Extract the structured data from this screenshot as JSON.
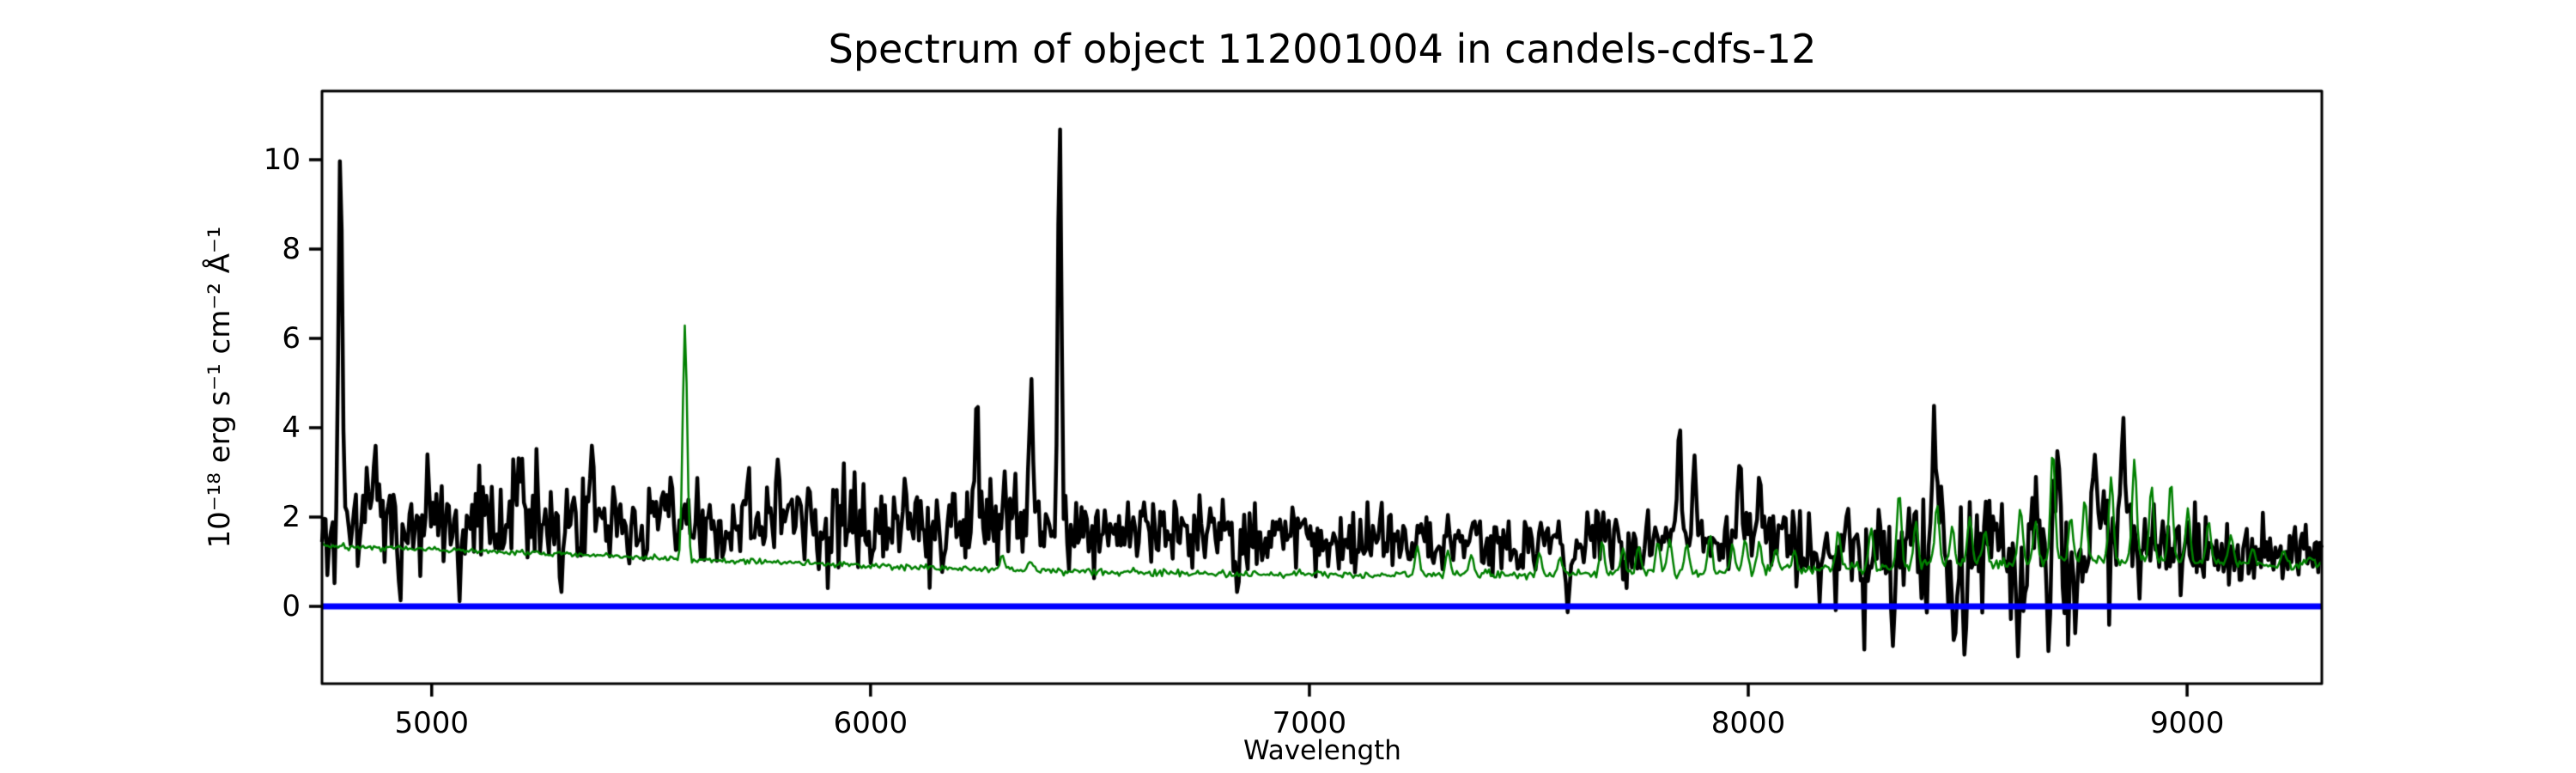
{
  "chart_data": {
    "type": "line",
    "title": "Spectrum of object 112001004 in candels-cdfs-12",
    "xlabel": "Wavelength",
    "ylabel": "10⁻¹⁸ erg s⁻¹ cm⁻² Å⁻¹",
    "xlim": [
      4750,
      9307
    ],
    "ylim": [
      -1.73,
      11.54
    ],
    "x_ticks": [
      5000,
      6000,
      7000,
      8000,
      9000
    ],
    "y_ticks": [
      0,
      2,
      4,
      6,
      8,
      10
    ],
    "grid": false,
    "legend": null,
    "background_color": "#ffffff",
    "axis_color": "#000000",
    "n_points": 1120,
    "series": [
      {
        "name": "object-flux",
        "color": "#000000",
        "linewidth": 4.5,
        "feature_width_angstrom": 4,
        "continuum_keypoints": [
          [
            4750,
            1.85
          ],
          [
            5000,
            1.95
          ],
          [
            5300,
            2.0
          ],
          [
            5600,
            1.9
          ],
          [
            5900,
            1.8
          ],
          [
            6200,
            1.85
          ],
          [
            6500,
            1.8
          ],
          [
            6800,
            1.6
          ],
          [
            7100,
            1.5
          ],
          [
            7400,
            1.45
          ],
          [
            7700,
            1.45
          ],
          [
            8000,
            1.45
          ],
          [
            8300,
            1.35
          ],
          [
            8600,
            1.4
          ],
          [
            8850,
            1.55
          ],
          [
            9000,
            1.2
          ],
          [
            9307,
            1.1
          ]
        ],
        "noise_sigma_keypoints": [
          [
            4750,
            0.55
          ],
          [
            5600,
            0.5
          ],
          [
            6200,
            0.5
          ],
          [
            6700,
            0.4
          ],
          [
            7200,
            0.33
          ],
          [
            7700,
            0.38
          ],
          [
            8100,
            0.45
          ],
          [
            8350,
            0.75
          ],
          [
            8700,
            0.85
          ],
          [
            8950,
            0.5
          ],
          [
            9100,
            0.35
          ],
          [
            9307,
            0.3
          ]
        ],
        "features": [
          [
            4792,
            10.4
          ],
          [
            4871,
            3.7
          ],
          [
            4928,
            0.05
          ],
          [
            5063,
            0.1
          ],
          [
            5205,
            3.4
          ],
          [
            5295,
            0.3
          ],
          [
            5365,
            3.6
          ],
          [
            5788,
            3.3
          ],
          [
            6243,
            4.65
          ],
          [
            6366,
            5.15
          ],
          [
            6431,
            10.9
          ],
          [
            6836,
            0.3
          ],
          [
            7589,
            -0.15
          ],
          [
            7843,
            4.15
          ],
          [
            7877,
            3.4
          ],
          [
            7981,
            3.3
          ],
          [
            8026,
            3.0
          ],
          [
            8330,
            -0.9
          ],
          [
            8423,
            4.5
          ],
          [
            8470,
            -1.0
          ],
          [
            8493,
            -1.1
          ],
          [
            8615,
            -1.13
          ],
          [
            8684,
            -1.0
          ],
          [
            8745,
            -0.6
          ],
          [
            8790,
            3.4
          ],
          [
            8854,
            4.3
          ]
        ]
      },
      {
        "name": "noise-spectrum",
        "color": "#008000",
        "linewidth": 2.5,
        "feature_width_angstrom": 5,
        "continuum_keypoints": [
          [
            4750,
            1.35
          ],
          [
            5000,
            1.28
          ],
          [
            5300,
            1.18
          ],
          [
            5600,
            1.05
          ],
          [
            5900,
            0.95
          ],
          [
            6200,
            0.85
          ],
          [
            6500,
            0.78
          ],
          [
            6800,
            0.73
          ],
          [
            7100,
            0.7
          ],
          [
            7400,
            0.72
          ],
          [
            7700,
            0.74
          ],
          [
            8000,
            0.78
          ],
          [
            8300,
            0.88
          ],
          [
            8600,
            0.98
          ],
          [
            8900,
            1.05
          ],
          [
            9100,
            0.95
          ],
          [
            9307,
            0.92
          ]
        ],
        "noise_sigma_keypoints": [
          [
            4750,
            0.03
          ],
          [
            6000,
            0.03
          ],
          [
            7000,
            0.04
          ],
          [
            7600,
            0.05
          ],
          [
            8200,
            0.07
          ],
          [
            9307,
            0.06
          ]
        ],
        "features": [
          [
            5577,
            6.3
          ],
          [
            6300,
            1.15
          ],
          [
            6364,
            1.0
          ],
          [
            7246,
            1.35
          ],
          [
            7316,
            1.25
          ],
          [
            7369,
            1.15
          ],
          [
            7524,
            1.2
          ],
          [
            7571,
            1.1
          ],
          [
            7667,
            1.45
          ],
          [
            7715,
            1.3
          ],
          [
            7750,
            1.35
          ],
          [
            7794,
            1.45
          ],
          [
            7821,
            1.5
          ],
          [
            7860,
            1.4
          ],
          [
            7913,
            1.6
          ],
          [
            7964,
            1.4
          ],
          [
            7993,
            1.5
          ],
          [
            8025,
            1.45
          ],
          [
            8063,
            1.3
          ],
          [
            8105,
            1.25
          ],
          [
            8205,
            1.7
          ],
          [
            8280,
            1.75
          ],
          [
            8344,
            2.55
          ],
          [
            8382,
            1.9
          ],
          [
            8430,
            2.3
          ],
          [
            8465,
            1.8
          ],
          [
            8505,
            2.0
          ],
          [
            8540,
            1.7
          ],
          [
            8620,
            2.2
          ],
          [
            8655,
            1.9
          ],
          [
            8694,
            3.5
          ],
          [
            8735,
            2.0
          ],
          [
            8767,
            2.4
          ],
          [
            8827,
            2.9
          ],
          [
            8880,
            3.3
          ],
          [
            8919,
            2.7
          ],
          [
            8963,
            2.8
          ],
          [
            9002,
            2.2
          ],
          [
            9049,
            1.9
          ],
          [
            9100,
            1.6
          ],
          [
            9150,
            1.3
          ],
          [
            9220,
            1.25
          ],
          [
            9280,
            1.1
          ]
        ]
      },
      {
        "name": "zero-line",
        "color": "#0000ff",
        "linewidth": 7,
        "constant_y": 0
      }
    ]
  }
}
